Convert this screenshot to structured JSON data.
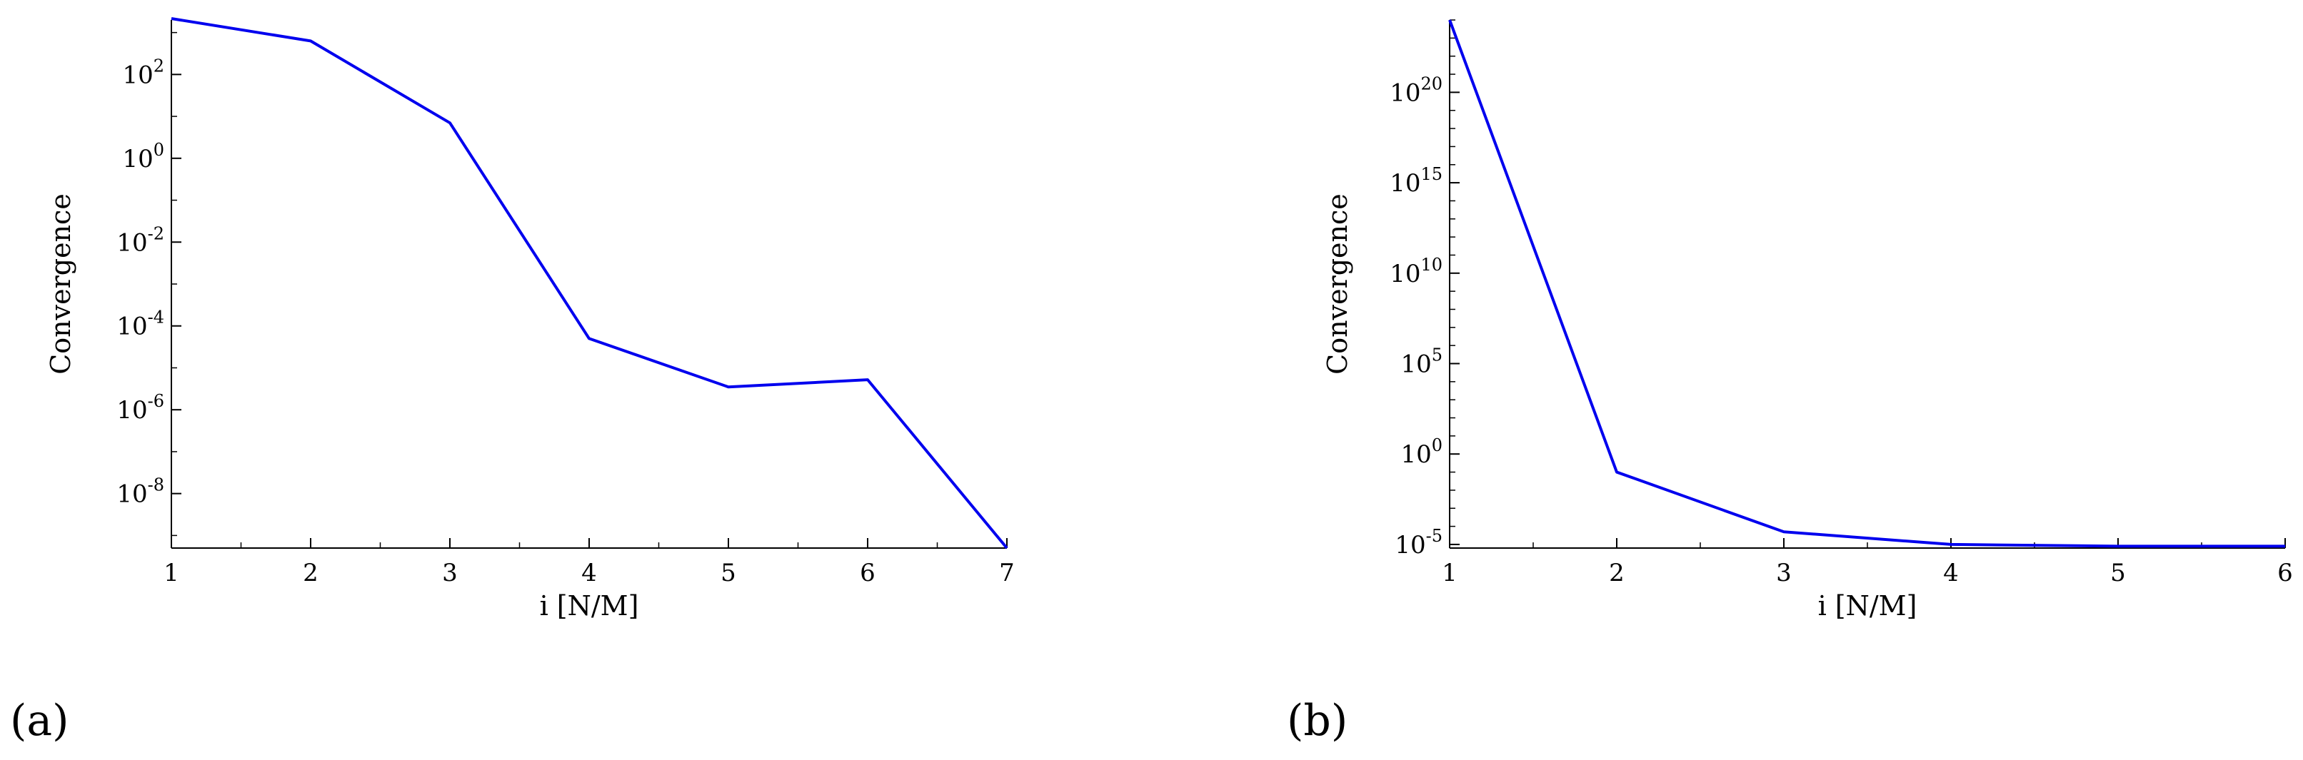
{
  "figure_labels": {
    "a": "(a)",
    "b": "(b)"
  },
  "chart_data": [
    {
      "type": "line",
      "panel": "a",
      "title": "",
      "xlabel": "i [N/M]",
      "ylabel": "Convergence",
      "yscale": "log",
      "xlim": [
        1,
        7
      ],
      "ylim_exp": [
        -9.3,
        3.3
      ],
      "xticks": [
        1,
        2,
        3,
        4,
        5,
        6,
        7
      ],
      "yticks_exp": [
        2,
        0,
        -2,
        -4,
        -6,
        -8
      ],
      "grid": false,
      "legend": "none",
      "series": [
        {
          "color": "#0000ee",
          "x": [
            1,
            2,
            3,
            4,
            5,
            6,
            7
          ],
          "y": [
            2500,
            630,
            7,
            5e-05,
            3.5e-06,
            5.2e-06,
            5e-10
          ]
        }
      ]
    },
    {
      "type": "line",
      "panel": "b",
      "title": "",
      "xlabel": "i [N/M]",
      "ylabel": "Convergence",
      "yscale": "log",
      "xlim": [
        1,
        6
      ],
      "ylim_exp": [
        -5.2,
        24.0
      ],
      "xticks": [
        1,
        2,
        3,
        4,
        5,
        6
      ],
      "yticks_exp": [
        20,
        15,
        10,
        5,
        0,
        -5
      ],
      "grid": false,
      "legend": "none",
      "series": [
        {
          "color": "#0000ee",
          "x": [
            1,
            2,
            3,
            4,
            5,
            6
          ],
          "y": [
            1e+24,
            0.1,
            5e-05,
            1e-05,
            8e-06,
            8e-06
          ]
        }
      ]
    }
  ]
}
